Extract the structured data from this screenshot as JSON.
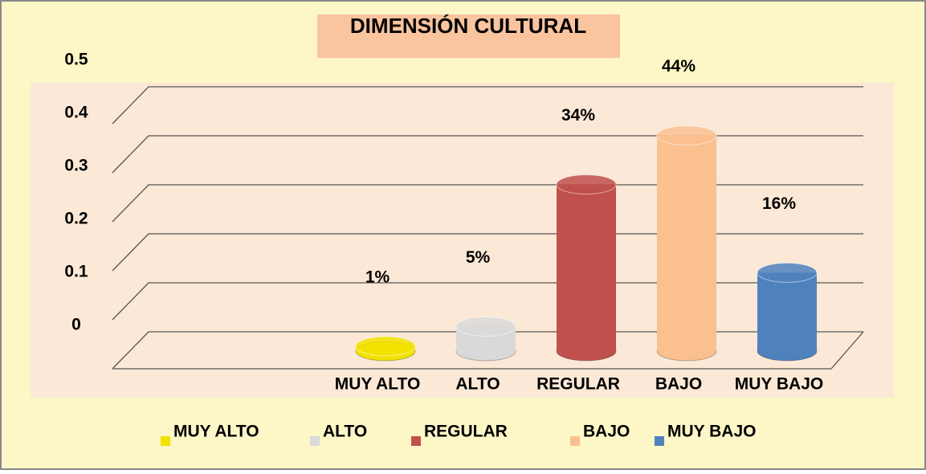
{
  "chart_data": {
    "type": "bar3d",
    "title": "DIMENSIÓN CULTURAL",
    "categories": [
      "MUY ALTO",
      "ALTO",
      "REGULAR",
      "BAJO",
      "MUY BAJO"
    ],
    "values": [
      0.01,
      0.05,
      0.34,
      0.44,
      0.16
    ],
    "value_labels": [
      "1%",
      "5%",
      "34%",
      "44%",
      "16%"
    ],
    "colors": [
      "#f2e200",
      "#d9d9d9",
      "#c0504d",
      "#fac090",
      "#4f81bd"
    ],
    "ylim": [
      0,
      0.5
    ],
    "yticks": [
      0,
      0.1,
      0.2,
      0.3,
      0.4,
      0.5
    ],
    "grid": true,
    "legend": "bottom"
  }
}
